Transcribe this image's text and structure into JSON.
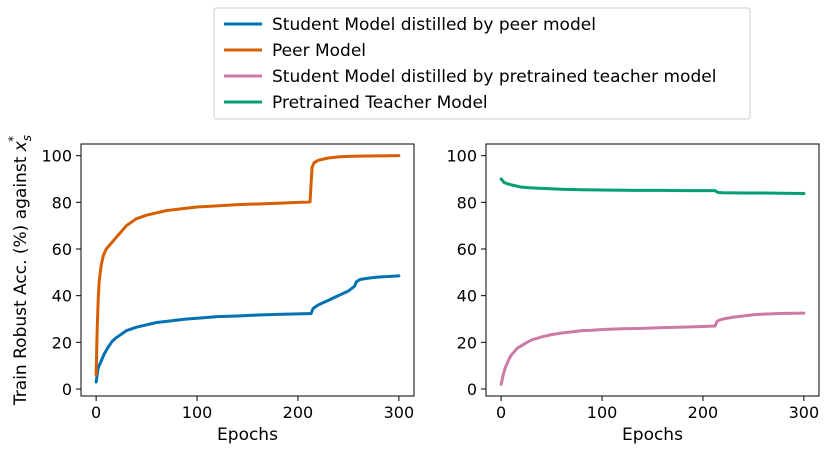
{
  "legend": {
    "location": "top-center",
    "entries": [
      {
        "label": "Student Model distilled by peer model",
        "color": "#0072B2"
      },
      {
        "label": "Peer Model",
        "color": "#D55E00"
      },
      {
        "label": "Student Model distilled by pretrained teacher model",
        "color": "#CC79A7"
      },
      {
        "label": "Pretrained Teacher Model",
        "color": "#009E73"
      }
    ]
  },
  "chart_data": [
    {
      "type": "line",
      "xlabel": "Epochs",
      "ylabel": "Train Robust Acc. (%) against x_s*",
      "xlim": [
        -15,
        315
      ],
      "ylim": [
        -3,
        105
      ],
      "xticks": [
        0,
        100,
        200,
        300
      ],
      "yticks": [
        0,
        20,
        40,
        60,
        80,
        100
      ],
      "grid": false,
      "series": [
        {
          "name": "Student Model distilled by peer model",
          "color": "#0072B2",
          "x": [
            0,
            2,
            5,
            8,
            12,
            16,
            20,
            25,
            30,
            40,
            50,
            60,
            70,
            80,
            90,
            100,
            120,
            140,
            160,
            180,
            200,
            210,
            213,
            215,
            220,
            230,
            240,
            250,
            256,
            258,
            262,
            270,
            280,
            290,
            300
          ],
          "y": [
            3,
            9,
            12,
            15,
            18,
            20.5,
            22,
            23.5,
            25,
            26.5,
            27.5,
            28.5,
            29,
            29.5,
            30,
            30.3,
            31,
            31.3,
            31.7,
            32,
            32.2,
            32.3,
            32.3,
            34.5,
            36,
            38,
            40,
            42,
            44,
            46,
            47,
            47.5,
            48,
            48.2,
            48.5
          ]
        },
        {
          "name": "Peer Model",
          "color": "#D55E00",
          "x": [
            0,
            1,
            2,
            3,
            5,
            7,
            10,
            15,
            20,
            25,
            30,
            35,
            40,
            50,
            60,
            70,
            80,
            90,
            100,
            120,
            140,
            160,
            180,
            200,
            210,
            212,
            213,
            214,
            216,
            220,
            230,
            240,
            250,
            260,
            280,
            300
          ],
          "y": [
            6,
            25,
            38,
            46,
            53,
            57,
            60,
            62.5,
            65,
            67.5,
            70,
            71.5,
            73,
            74.5,
            75.5,
            76.5,
            77,
            77.5,
            78,
            78.5,
            79,
            79.3,
            79.6,
            80,
            80.1,
            80.2,
            88,
            95,
            97,
            98,
            99,
            99.5,
            99.7,
            99.8,
            99.9,
            100
          ]
        }
      ]
    },
    {
      "type": "line",
      "xlabel": "Epochs",
      "ylabel": "",
      "xlim": [
        -15,
        315
      ],
      "ylim": [
        -3,
        105
      ],
      "xticks": [
        0,
        100,
        200,
        300
      ],
      "yticks": [
        0,
        20,
        40,
        60,
        80,
        100
      ],
      "grid": false,
      "series": [
        {
          "name": "Student Model distilled by pretrained teacher model",
          "color": "#CC79A7",
          "x": [
            0,
            2,
            4,
            6,
            8,
            10,
            13,
            16,
            20,
            25,
            30,
            40,
            50,
            60,
            70,
            80,
            90,
            100,
            120,
            140,
            160,
            180,
            200,
            212,
            214,
            216,
            220,
            230,
            240,
            250,
            260,
            280,
            300
          ],
          "y": [
            2,
            6,
            9,
            11,
            13,
            14.5,
            16,
            17.5,
            18.5,
            19.8,
            21,
            22.3,
            23.3,
            24,
            24.5,
            25,
            25.2,
            25.5,
            25.8,
            26,
            26.3,
            26.5,
            26.8,
            27,
            29,
            29.5,
            30,
            30.8,
            31.3,
            31.8,
            32.1,
            32.4,
            32.5
          ]
        },
        {
          "name": "Pretrained Teacher Model",
          "color": "#009E73",
          "x": [
            0,
            3,
            6,
            10,
            15,
            20,
            30,
            40,
            60,
            80,
            100,
            120,
            140,
            160,
            180,
            200,
            212,
            215,
            220,
            240,
            260,
            280,
            300
          ],
          "y": [
            90,
            88.5,
            88,
            87.5,
            87,
            86.5,
            86.2,
            86,
            85.6,
            85.4,
            85.3,
            85.2,
            85.1,
            85.1,
            85,
            85,
            85,
            84.2,
            84.1,
            84,
            84,
            83.9,
            83.8
          ]
        }
      ]
    }
  ]
}
